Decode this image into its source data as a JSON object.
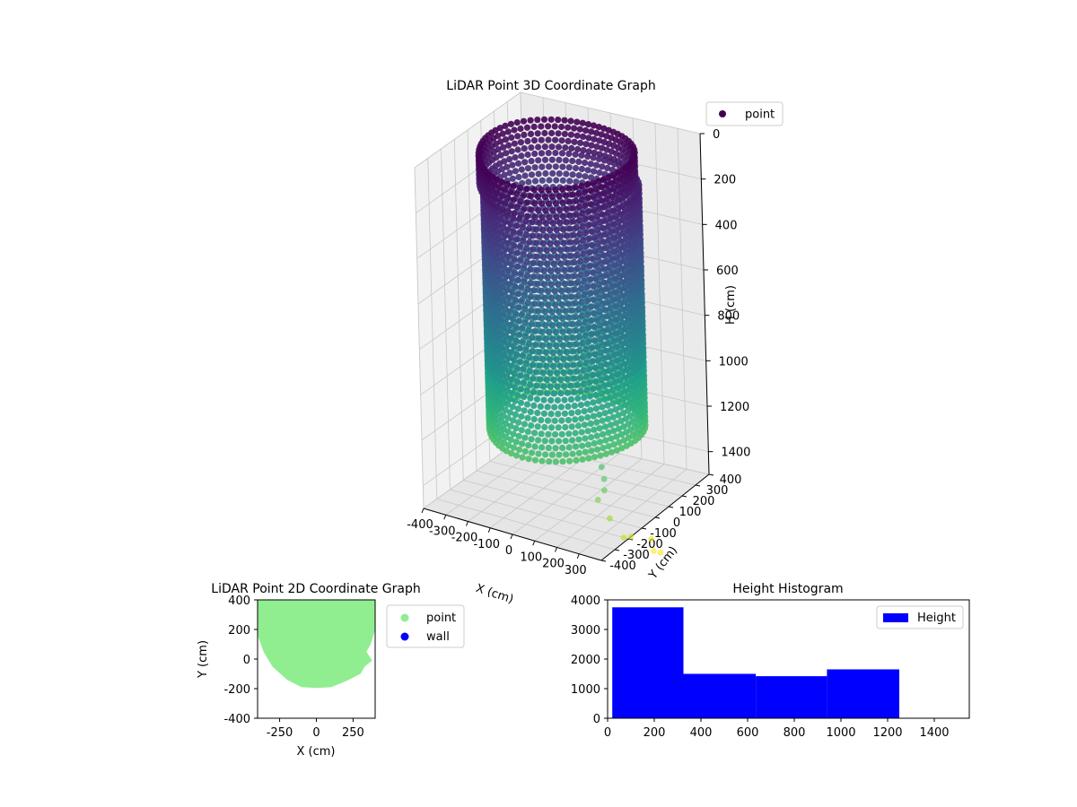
{
  "chart_data": [
    {
      "type": "scatter3d",
      "title": "LiDAR Point 3D Coordinate Graph",
      "xlabel": "X (cm)",
      "ylabel": "Y (cm)",
      "zlabel": "H (cm)",
      "xlim": [
        -400,
        400
      ],
      "ylim": [
        -400,
        400
      ],
      "zlim": [
        0,
        1500
      ],
      "z_inverted": true,
      "xticks": [
        -400,
        -300,
        -200,
        -100,
        0,
        100,
        200,
        300
      ],
      "yticks": [
        -400,
        -300,
        -200,
        -100,
        0,
        100,
        200,
        300,
        400
      ],
      "zticks": [
        0,
        200,
        400,
        600,
        800,
        1000,
        1200,
        1400
      ],
      "grid": true,
      "colormap": "viridis",
      "legend": {
        "placement": "top-right",
        "entries": [
          {
            "label": "point",
            "color": "#440154"
          }
        ]
      },
      "series": [
        {
          "name": "point",
          "shape": "cylinder",
          "center_x": 0,
          "center_y": 0,
          "radius": 300,
          "h_range": [
            0,
            1200
          ],
          "outliers": [
            {
              "x": 350,
              "y": -300,
              "h": 1150
            },
            {
              "x": 360,
              "y": -300,
              "h": 1200
            },
            {
              "x": 360,
              "y": -300,
              "h": 1250
            },
            {
              "x": 330,
              "y": -300,
              "h": 1300
            },
            {
              "x": 350,
              "y": -250,
              "h": 1400
            },
            {
              "x": 380,
              "y": -200,
              "h": 1500
            },
            {
              "x": 350,
              "y": -100,
              "h": 1550
            },
            {
              "x": 380,
              "y": 0,
              "h": 1600
            },
            {
              "x": 390,
              "y": 0,
              "h": 1650
            },
            {
              "x": 420,
              "y": 0,
              "h": 1650
            }
          ]
        }
      ]
    },
    {
      "type": "scatter",
      "title": "LiDAR Point 2D Coordinate Graph",
      "xlabel": "X (cm)",
      "ylabel": "Y (cm)",
      "xlim": [
        -400,
        400
      ],
      "ylim": [
        -400,
        400
      ],
      "xticks": [
        -250,
        0,
        250
      ],
      "yticks": [
        -400,
        -200,
        0,
        200,
        400
      ],
      "legend": {
        "placement": "right",
        "entries": [
          {
            "label": "point",
            "color": "#90ee90"
          },
          {
            "label": "wall",
            "color": "#0000ff"
          }
        ]
      },
      "series": [
        {
          "name": "point",
          "color": "#90ee90",
          "outline": [
            [
              -400,
              400
            ],
            [
              400,
              400
            ],
            [
              400,
              200
            ],
            [
              370,
              100
            ],
            [
              340,
              50
            ],
            [
              380,
              -10
            ],
            [
              330,
              -50
            ],
            [
              300,
              -100
            ],
            [
              200,
              -150
            ],
            [
              100,
              -190
            ],
            [
              0,
              -195
            ],
            [
              -100,
              -190
            ],
            [
              -200,
              -140
            ],
            [
              -300,
              -50
            ],
            [
              -360,
              50
            ],
            [
              -395,
              150
            ],
            [
              -400,
              400
            ]
          ]
        },
        {
          "name": "wall",
          "color": "#0000ff",
          "outline": []
        }
      ]
    },
    {
      "type": "histogram",
      "title": "Height Histogram",
      "xlim": [
        0,
        1550
      ],
      "ylim": [
        0,
        4000
      ],
      "xticks": [
        0,
        200,
        400,
        600,
        800,
        1000,
        1200,
        1400
      ],
      "yticks": [
        0,
        1000,
        2000,
        3000,
        4000
      ],
      "legend": {
        "placement": "top-right",
        "entries": [
          {
            "label": "Height",
            "color": "#0000ff"
          }
        ]
      },
      "bins": [
        {
          "x0": 20,
          "x1": 325,
          "count": 3750
        },
        {
          "x0": 325,
          "x1": 635,
          "count": 1500
        },
        {
          "x0": 635,
          "x1": 940,
          "count": 1420
        },
        {
          "x0": 940,
          "x1": 1250,
          "count": 1650
        },
        {
          "x0": 1250,
          "x1": 1555,
          "count": 0
        }
      ],
      "color": "#0000ff"
    }
  ]
}
